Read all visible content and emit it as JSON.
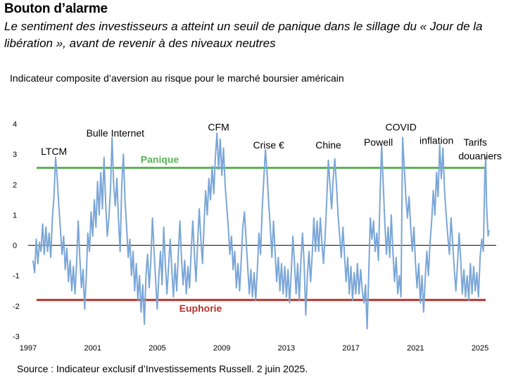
{
  "header": {
    "title": "Bouton d’alarme",
    "subtitle": "Le sentiment des investisseurs a atteint un seuil de panique dans le sillage du « Jour de la libération », avant de revenir à des niveaux neutres"
  },
  "source": "Source : Indicateur exclusif d’Investissements Russell. 2 juin 2025.",
  "chart_data": {
    "type": "line",
    "title": "Indicateur composite d’aversion au risque pour le marché boursier américain",
    "xlabel": "",
    "ylabel": "",
    "xlim": [
      1997,
      2026
    ],
    "ylim": [
      -3,
      4
    ],
    "x_ticks": [
      1997,
      2001,
      2005,
      2009,
      2013,
      2017,
      2021,
      2025
    ],
    "y_ticks": [
      4,
      3,
      2,
      1,
      0,
      -1,
      -2,
      -3
    ],
    "zero_line": 0,
    "colors": {
      "series": "#7aa6d8",
      "panic": "#5cb356",
      "euphoria": "#b5332a",
      "zero": "#000000",
      "axis_text": "#000000"
    },
    "thresholds": [
      {
        "name": "Panique",
        "value": 2.55,
        "color": "#5cb356"
      },
      {
        "name": "Euphorie",
        "value": -1.8,
        "color": "#b5332a"
      }
    ],
    "annotations": [
      {
        "label": "LTCM",
        "x": 1998.6,
        "y": 3.1
      },
      {
        "label": "Bulle Internet",
        "x": 2002.4,
        "y": 3.7
      },
      {
        "label": "CFM",
        "x": 2008.8,
        "y": 3.9
      },
      {
        "label": "Crise €",
        "x": 2011.9,
        "y": 3.3
      },
      {
        "label": "Chine",
        "x": 2015.6,
        "y": 3.3
      },
      {
        "label": "Powell",
        "x": 2018.7,
        "y": 3.4
      },
      {
        "label": "COVID",
        "x": 2020.1,
        "y": 3.9
      },
      {
        "label": "inflation",
        "x": 2022.3,
        "y": 3.45
      },
      {
        "label": "Tarifs",
        "x": 2024.7,
        "y": 3.4
      },
      {
        "label": "douaniers",
        "x": 2025.0,
        "y": 2.95
      }
    ],
    "series": [
      {
        "name": "Indicateur composite d’aversion au risque",
        "points": [
          [
            1997.3,
            -0.5
          ],
          [
            1997.4,
            -0.9
          ],
          [
            1997.5,
            0.2
          ],
          [
            1997.6,
            -0.6
          ],
          [
            1997.7,
            0.1
          ],
          [
            1997.8,
            -0.2
          ],
          [
            1997.9,
            0.7
          ],
          [
            1998.0,
            -0.3
          ],
          [
            1998.1,
            0.6
          ],
          [
            1998.2,
            -0.2
          ],
          [
            1998.3,
            0.4
          ],
          [
            1998.4,
            -0.4
          ],
          [
            1998.5,
            0.9
          ],
          [
            1998.6,
            1.6
          ],
          [
            1998.7,
            2.9
          ],
          [
            1998.8,
            2.2
          ],
          [
            1998.9,
            1.3
          ],
          [
            1999.0,
            0.5
          ],
          [
            1999.1,
            -0.3
          ],
          [
            1999.2,
            0.3
          ],
          [
            1999.3,
            -0.8
          ],
          [
            1999.4,
            -0.1
          ],
          [
            1999.5,
            -1.2
          ],
          [
            1999.6,
            -0.5
          ],
          [
            1999.7,
            -1.5
          ],
          [
            1999.8,
            -0.7
          ],
          [
            1999.9,
            -1.6
          ],
          [
            2000.0,
            -0.6
          ],
          [
            2000.1,
            0.8
          ],
          [
            2000.2,
            -0.4
          ],
          [
            2000.3,
            -1.4
          ],
          [
            2000.4,
            -0.8
          ],
          [
            2000.5,
            -2.1
          ],
          [
            2000.6,
            -1.0
          ],
          [
            2000.7,
            0.4
          ],
          [
            2000.8,
            -0.2
          ],
          [
            2000.9,
            1.1
          ],
          [
            2001.0,
            0.3
          ],
          [
            2001.1,
            1.5
          ],
          [
            2001.2,
            0.6
          ],
          [
            2001.3,
            2.1
          ],
          [
            2001.4,
            1.0
          ],
          [
            2001.5,
            2.4
          ],
          [
            2001.6,
            1.2
          ],
          [
            2001.7,
            2.9
          ],
          [
            2001.8,
            1.4
          ],
          [
            2001.9,
            0.3
          ],
          [
            2002.0,
            0.9
          ],
          [
            2002.1,
            1.8
          ],
          [
            2002.2,
            3.55
          ],
          [
            2002.3,
            2.0
          ],
          [
            2002.4,
            1.3
          ],
          [
            2002.5,
            2.2
          ],
          [
            2002.6,
            0.8
          ],
          [
            2002.7,
            -0.2
          ],
          [
            2002.8,
            2.0
          ],
          [
            2002.9,
            3.0
          ],
          [
            2003.0,
            1.5
          ],
          [
            2003.1,
            0.6
          ],
          [
            2003.2,
            -0.4
          ],
          [
            2003.3,
            0.2
          ],
          [
            2003.4,
            -1.0
          ],
          [
            2003.5,
            -0.2
          ],
          [
            2003.6,
            -1.5
          ],
          [
            2003.7,
            -0.6
          ],
          [
            2003.8,
            -1.8
          ],
          [
            2003.9,
            -1.0
          ],
          [
            2004.0,
            -2.2
          ],
          [
            2004.1,
            -1.3
          ],
          [
            2004.2,
            -2.6
          ],
          [
            2004.3,
            -1.0
          ],
          [
            2004.4,
            -0.3
          ],
          [
            2004.5,
            -1.4
          ],
          [
            2004.6,
            -0.5
          ],
          [
            2004.7,
            0.9
          ],
          [
            2004.8,
            -0.2
          ],
          [
            2004.9,
            -1.2
          ],
          [
            2005.0,
            -2.1
          ],
          [
            2005.1,
            -1.0
          ],
          [
            2005.2,
            -0.2
          ],
          [
            2005.3,
            -1.3
          ],
          [
            2005.4,
            0.6
          ],
          [
            2005.5,
            -0.6
          ],
          [
            2005.6,
            -1.6
          ],
          [
            2005.7,
            -0.7
          ],
          [
            2005.8,
            0.2
          ],
          [
            2005.9,
            -0.8
          ],
          [
            2006.0,
            -1.7
          ],
          [
            2006.1,
            -0.6
          ],
          [
            2006.2,
            -1.5
          ],
          [
            2006.3,
            -0.3
          ],
          [
            2006.4,
            0.8
          ],
          [
            2006.5,
            -0.4
          ],
          [
            2006.6,
            -1.3
          ],
          [
            2006.7,
            -0.5
          ],
          [
            2006.8,
            -1.6
          ],
          [
            2006.9,
            -0.7
          ],
          [
            2007.0,
            -1.4
          ],
          [
            2007.1,
            -0.2
          ],
          [
            2007.2,
            0.8
          ],
          [
            2007.3,
            -0.3
          ],
          [
            2007.4,
            -1.2
          ],
          [
            2007.5,
            0.1
          ],
          [
            2007.6,
            1.2
          ],
          [
            2007.7,
            0.2
          ],
          [
            2007.8,
            -0.6
          ],
          [
            2007.9,
            0.7
          ],
          [
            2008.0,
            1.8
          ],
          [
            2008.1,
            1.0
          ],
          [
            2008.2,
            2.2
          ],
          [
            2008.3,
            1.5
          ],
          [
            2008.4,
            2.6
          ],
          [
            2008.5,
            1.7
          ],
          [
            2008.6,
            2.9
          ],
          [
            2008.7,
            3.7
          ],
          [
            2008.8,
            2.5
          ],
          [
            2008.9,
            3.5
          ],
          [
            2009.0,
            2.3
          ],
          [
            2009.1,
            3.2
          ],
          [
            2009.2,
            2.0
          ],
          [
            2009.3,
            1.3
          ],
          [
            2009.4,
            0.6
          ],
          [
            2009.5,
            -0.3
          ],
          [
            2009.6,
            0.3
          ],
          [
            2009.7,
            -0.8
          ],
          [
            2009.8,
            -0.2
          ],
          [
            2009.9,
            -1.4
          ],
          [
            2010.0,
            -0.6
          ],
          [
            2010.1,
            -1.5
          ],
          [
            2010.2,
            -0.5
          ],
          [
            2010.3,
            0.6
          ],
          [
            2010.4,
            1.1
          ],
          [
            2010.5,
            0.2
          ],
          [
            2010.6,
            -0.7
          ],
          [
            2010.7,
            -1.6
          ],
          [
            2010.8,
            -0.8
          ],
          [
            2010.9,
            -1.7
          ],
          [
            2011.0,
            -0.9
          ],
          [
            2011.1,
            -1.8
          ],
          [
            2011.2,
            -0.8
          ],
          [
            2011.3,
            0.4
          ],
          [
            2011.4,
            -0.3
          ],
          [
            2011.5,
            1.2
          ],
          [
            2011.6,
            2.2
          ],
          [
            2011.7,
            3.15
          ],
          [
            2011.8,
            2.4
          ],
          [
            2011.9,
            1.4
          ],
          [
            2012.0,
            0.6
          ],
          [
            2012.1,
            -0.4
          ],
          [
            2012.2,
            0.8
          ],
          [
            2012.3,
            -0.2
          ],
          [
            2012.4,
            -1.2
          ],
          [
            2012.5,
            -0.4
          ],
          [
            2012.6,
            -1.5
          ],
          [
            2012.7,
            -0.6
          ],
          [
            2012.8,
            -1.6
          ],
          [
            2012.9,
            -0.7
          ],
          [
            2013.0,
            -1.7
          ],
          [
            2013.1,
            -0.8
          ],
          [
            2013.2,
            -1.9
          ],
          [
            2013.3,
            -0.9
          ],
          [
            2013.4,
            0.3
          ],
          [
            2013.5,
            -0.6
          ],
          [
            2013.6,
            -1.6
          ],
          [
            2013.7,
            -0.6
          ],
          [
            2013.8,
            -1.8
          ],
          [
            2013.9,
            -0.5
          ],
          [
            2014.0,
            0.4
          ],
          [
            2014.1,
            -0.6
          ],
          [
            2014.2,
            -2.3
          ],
          [
            2014.3,
            -1.0
          ],
          [
            2014.4,
            -0.2
          ],
          [
            2014.5,
            -1.2
          ],
          [
            2014.6,
            -0.3
          ],
          [
            2014.7,
            0.9
          ],
          [
            2014.8,
            -0.2
          ],
          [
            2014.9,
            0.8
          ],
          [
            2015.0,
            -0.2
          ],
          [
            2015.1,
            0.9
          ],
          [
            2015.2,
            0.1
          ],
          [
            2015.3,
            -0.6
          ],
          [
            2015.4,
            0.3
          ],
          [
            2015.5,
            1.5
          ],
          [
            2015.6,
            2.8
          ],
          [
            2015.7,
            2.0
          ],
          [
            2015.8,
            1.2
          ],
          [
            2015.9,
            2.2
          ],
          [
            2016.0,
            2.85
          ],
          [
            2016.1,
            2.0
          ],
          [
            2016.2,
            1.0
          ],
          [
            2016.3,
            0.3
          ],
          [
            2016.4,
            -0.4
          ],
          [
            2016.5,
            0.6
          ],
          [
            2016.6,
            -0.3
          ],
          [
            2016.7,
            -1.2
          ],
          [
            2016.8,
            -0.4
          ],
          [
            2016.9,
            -1.6
          ],
          [
            2017.0,
            -0.7
          ],
          [
            2017.1,
            -1.8
          ],
          [
            2017.2,
            -0.9
          ],
          [
            2017.3,
            -1.6
          ],
          [
            2017.4,
            -0.6
          ],
          [
            2017.5,
            -1.6
          ],
          [
            2017.6,
            -0.8
          ],
          [
            2017.7,
            -1.5
          ],
          [
            2017.8,
            -1.9
          ],
          [
            2017.9,
            -1.3
          ],
          [
            2018.0,
            -2.75
          ],
          [
            2018.1,
            -1.0
          ],
          [
            2018.2,
            0.9
          ],
          [
            2018.3,
            0.2
          ],
          [
            2018.4,
            0.8
          ],
          [
            2018.5,
            -0.2
          ],
          [
            2018.6,
            0.4
          ],
          [
            2018.7,
            -0.5
          ],
          [
            2018.8,
            1.6
          ],
          [
            2018.9,
            3.3
          ],
          [
            2019.0,
            2.0
          ],
          [
            2019.1,
            0.7
          ],
          [
            2019.2,
            -0.3
          ],
          [
            2019.3,
            0.6
          ],
          [
            2019.4,
            -0.4
          ],
          [
            2019.5,
            1.0
          ],
          [
            2019.6,
            -0.2
          ],
          [
            2019.7,
            -1.2
          ],
          [
            2019.8,
            -0.4
          ],
          [
            2019.9,
            -1.6
          ],
          [
            2020.0,
            -1.0
          ],
          [
            2020.1,
            -1.7
          ],
          [
            2020.2,
            3.55
          ],
          [
            2020.3,
            2.6
          ],
          [
            2020.4,
            1.6
          ],
          [
            2020.5,
            0.9
          ],
          [
            2020.6,
            1.6
          ],
          [
            2020.7,
            0.6
          ],
          [
            2020.8,
            -0.2
          ],
          [
            2020.9,
            0.6
          ],
          [
            2021.0,
            -0.6
          ],
          [
            2021.1,
            -1.4
          ],
          [
            2021.2,
            -0.6
          ],
          [
            2021.3,
            -1.9
          ],
          [
            2021.4,
            -1.0
          ],
          [
            2021.5,
            -2.2
          ],
          [
            2021.6,
            -1.1
          ],
          [
            2021.7,
            -0.2
          ],
          [
            2021.8,
            -1.0
          ],
          [
            2021.9,
            0.1
          ],
          [
            2022.0,
            0.8
          ],
          [
            2022.1,
            1.8
          ],
          [
            2022.2,
            1.0
          ],
          [
            2022.3,
            2.4
          ],
          [
            2022.4,
            1.6
          ],
          [
            2022.5,
            3.3
          ],
          [
            2022.6,
            2.2
          ],
          [
            2022.7,
            3.2
          ],
          [
            2022.8,
            1.8
          ],
          [
            2022.9,
            1.0
          ],
          [
            2023.0,
            0.3
          ],
          [
            2023.1,
            -0.3
          ],
          [
            2023.2,
            0.9
          ],
          [
            2023.3,
            0.1
          ],
          [
            2023.4,
            -0.8
          ],
          [
            2023.5,
            -1.5
          ],
          [
            2023.6,
            -0.6
          ],
          [
            2023.7,
            0.4
          ],
          [
            2023.8,
            -0.5
          ],
          [
            2023.9,
            -1.6
          ],
          [
            2024.0,
            -0.8
          ],
          [
            2024.1,
            -1.7
          ],
          [
            2024.2,
            -1.0
          ],
          [
            2024.3,
            -1.8
          ],
          [
            2024.4,
            -0.6
          ],
          [
            2024.5,
            -1.6
          ],
          [
            2024.6,
            -0.7
          ],
          [
            2024.7,
            -1.5
          ],
          [
            2024.8,
            -0.9
          ],
          [
            2024.9,
            -1.7
          ],
          [
            2025.0,
            -0.4
          ],
          [
            2025.1,
            0.2
          ],
          [
            2025.2,
            -0.2
          ],
          [
            2025.3,
            2.4
          ],
          [
            2025.35,
            2.9
          ],
          [
            2025.4,
            1.4
          ],
          [
            2025.45,
            0.8
          ],
          [
            2025.5,
            0.3
          ],
          [
            2025.55,
            0.5
          ]
        ]
      }
    ]
  }
}
